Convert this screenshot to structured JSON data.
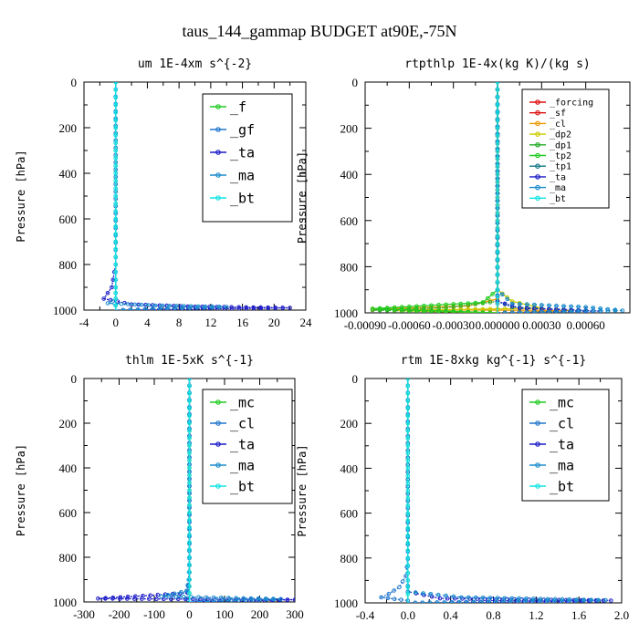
{
  "figure_title": "taus_144_gammap  BUDGET at90E,-75N",
  "chart_data": [
    {
      "type": "line",
      "title": "um  1E-4xm s^{-2}",
      "ylabel": "Pressure [hPa]",
      "xlim": [
        -4,
        24
      ],
      "ylim": [
        1000,
        0
      ],
      "xticks": [
        "-4",
        "0",
        "4",
        "8",
        "12",
        "16",
        "20",
        "24"
      ],
      "yticks": [
        "0",
        "200",
        "400",
        "600",
        "800",
        "1000"
      ],
      "legend_position": "top-right",
      "series": [
        {
          "name": "_f",
          "color": "#22cc22",
          "marker": "o",
          "points": [
            [
              0,
              0
            ],
            [
              0,
              200
            ],
            [
              0,
              400
            ],
            [
              0,
              600
            ],
            [
              0,
              800
            ],
            [
              0,
              900
            ],
            [
              0,
              950
            ],
            [
              0,
              980
            ],
            [
              0,
              1000
            ]
          ]
        },
        {
          "name": "_gf",
          "color": "#2277cc",
          "marker": "x",
          "points": [
            [
              0,
              0
            ],
            [
              0,
              200
            ],
            [
              0,
              400
            ],
            [
              0,
              600
            ],
            [
              0,
              800
            ],
            [
              0,
              900
            ],
            [
              0,
              950
            ],
            [
              0,
              980
            ],
            [
              0,
              1000
            ]
          ]
        },
        {
          "name": "_ta",
          "color": "#1c1cc8",
          "marker": "+",
          "points": [
            [
              0,
              0
            ],
            [
              0,
              800
            ],
            [
              -0.5,
              900
            ],
            [
              -1.5,
              950
            ],
            [
              2,
              975
            ],
            [
              10,
              985
            ],
            [
              22,
              990
            ],
            [
              0,
              1000
            ]
          ]
        },
        {
          "name": "_ma",
          "color": "#1c8ccc",
          "marker": "-",
          "points": [
            [
              0,
              0
            ],
            [
              0,
              800
            ],
            [
              0,
              900
            ],
            [
              0,
              950
            ],
            [
              -1,
              970
            ],
            [
              5,
              980
            ],
            [
              14,
              986
            ],
            [
              0,
              1000
            ]
          ]
        },
        {
          "name": "_bt",
          "color": "#14e4e4",
          "marker": "s",
          "points": [
            [
              0,
              0
            ],
            [
              0,
              200
            ],
            [
              0,
              400
            ],
            [
              0,
              600
            ],
            [
              0,
              800
            ],
            [
              0,
              900
            ],
            [
              0,
              950
            ],
            [
              0,
              980
            ],
            [
              0,
              1000
            ]
          ]
        }
      ]
    },
    {
      "type": "line",
      "title": "rtpthlp  1E-4x(kg K)/(kg s)",
      "ylabel": "Pressure [hPa]",
      "xlim": [
        -0.0009,
        0.0009
      ],
      "ylim": [
        1000,
        0
      ],
      "xticks": [
        "-0.00090",
        "-0.00060",
        "-0.00030",
        "0.000000",
        "0.00030",
        "0.00060"
      ],
      "yticks": [
        "0",
        "200",
        "400",
        "600",
        "800",
        "1000"
      ],
      "legend_position": "top-right",
      "series": [
        {
          "name": "_forcing",
          "color": "#dd1111",
          "marker": "o",
          "points": [
            [
              0,
              0
            ],
            [
              0,
              200
            ],
            [
              0,
              400
            ],
            [
              0,
              600
            ],
            [
              0,
              800
            ],
            [
              0,
              900
            ],
            [
              0,
              960
            ],
            [
              0,
              1000
            ]
          ]
        },
        {
          "name": "_sf",
          "color": "#dd1111",
          "marker": "*",
          "points": [
            [
              0,
              0
            ],
            [
              0,
              200
            ],
            [
              0,
              400
            ],
            [
              0,
              600
            ],
            [
              0,
              800
            ],
            [
              0,
              900
            ],
            [
              0,
              960
            ],
            [
              0,
              1000
            ]
          ]
        },
        {
          "name": "_cl",
          "color": "#ee9900",
          "marker": "^",
          "points": [
            [
              0,
              0
            ],
            [
              0,
              900
            ],
            [
              0,
              940
            ],
            [
              -0.0002,
              970
            ],
            [
              -0.00085,
              985
            ],
            [
              0.0005,
              990
            ],
            [
              0,
              1000
            ]
          ]
        },
        {
          "name": "_dp2",
          "color": "#cccc00",
          "marker": "o",
          "points": [
            [
              0,
              0
            ],
            [
              0,
              900
            ],
            [
              0.0001,
              950
            ],
            [
              0.0003,
              980
            ],
            [
              -0.0007,
              990
            ],
            [
              0,
              1000
            ]
          ]
        },
        {
          "name": "_dp1",
          "color": "#22aa22",
          "marker": "x",
          "points": [
            [
              0,
              0
            ],
            [
              0,
              900
            ],
            [
              0,
              950
            ],
            [
              -0.00035,
              978
            ],
            [
              -0.00085,
              988
            ],
            [
              0,
              1000
            ]
          ]
        },
        {
          "name": "_tp2",
          "color": "#22cc22",
          "marker": "o",
          "points": [
            [
              0,
              0
            ],
            [
              0,
              900
            ],
            [
              -0.0001,
              955
            ],
            [
              -0.00085,
              982
            ],
            [
              0,
              1000
            ]
          ]
        },
        {
          "name": "_tp1",
          "color": "#117788",
          "marker": "x",
          "points": [
            [
              0,
              0
            ],
            [
              0,
              900
            ],
            [
              0,
              950
            ],
            [
              0.0001,
              975
            ],
            [
              0.0006,
              990
            ],
            [
              0,
              1000
            ]
          ]
        },
        {
          "name": "_ta",
          "color": "#1c1cc8",
          "marker": "+",
          "points": [
            [
              0,
              0
            ],
            [
              0,
              900
            ],
            [
              0,
              950
            ],
            [
              0.00015,
              980
            ],
            [
              0.0007,
              992
            ],
            [
              0,
              1000
            ]
          ]
        },
        {
          "name": "_ma",
          "color": "#1c8ccc",
          "marker": "-",
          "points": [
            [
              0,
              0
            ],
            [
              0,
              900
            ],
            [
              0.0001,
              960
            ],
            [
              0.0006,
              975
            ],
            [
              0.00085,
              990
            ],
            [
              0,
              1000
            ]
          ]
        },
        {
          "name": "_bt",
          "color": "#14e4e4",
          "marker": "s",
          "points": [
            [
              0,
              0
            ],
            [
              0,
              200
            ],
            [
              0,
              400
            ],
            [
              0,
              600
            ],
            [
              0,
              800
            ],
            [
              0,
              900
            ],
            [
              0,
              960
            ],
            [
              0,
              1000
            ]
          ]
        }
      ]
    },
    {
      "type": "line",
      "title": "thlm  1E-5xK s^{-1}",
      "ylabel": "Pressure [hPa]",
      "xlim": [
        -300,
        300
      ],
      "ylim": [
        1000,
        0
      ],
      "xticks": [
        "-300",
        "-200",
        "-100",
        "0",
        "100",
        "200",
        "300"
      ],
      "yticks": [
        "0",
        "200",
        "400",
        "600",
        "800",
        "1000"
      ],
      "legend_position": "top-right",
      "series": [
        {
          "name": "_mc",
          "color": "#22cc22",
          "marker": "o",
          "points": [
            [
              0,
              0
            ],
            [
              0,
              200
            ],
            [
              0,
              400
            ],
            [
              0,
              600
            ],
            [
              0,
              800
            ],
            [
              0,
              900
            ],
            [
              0,
              960
            ],
            [
              0,
              1000
            ]
          ]
        },
        {
          "name": "_cl",
          "color": "#2277cc",
          "marker": "x",
          "points": [
            [
              0,
              0
            ],
            [
              0,
              800
            ],
            [
              -2,
              900
            ],
            [
              -8,
              950
            ],
            [
              -30,
              975
            ],
            [
              -5,
              990
            ],
            [
              0,
              1000
            ]
          ]
        },
        {
          "name": "_ta",
          "color": "#1c1cc8",
          "marker": "+",
          "points": [
            [
              0,
              0
            ],
            [
              0,
              900
            ],
            [
              -5,
              960
            ],
            [
              -260,
              985
            ],
            [
              300,
              990
            ],
            [
              0,
              1000
            ]
          ]
        },
        {
          "name": "_ma",
          "color": "#1c8ccc",
          "marker": "-",
          "points": [
            [
              0,
              0
            ],
            [
              0,
              900
            ],
            [
              -5,
              950
            ],
            [
              -80,
              975
            ],
            [
              260,
              987
            ],
            [
              0,
              1000
            ]
          ]
        },
        {
          "name": "_bt",
          "color": "#14e4e4",
          "marker": "s",
          "points": [
            [
              0,
              0
            ],
            [
              0,
              200
            ],
            [
              0,
              400
            ],
            [
              0,
              600
            ],
            [
              0,
              800
            ],
            [
              0,
              900
            ],
            [
              0,
              960
            ],
            [
              0,
              1000
            ]
          ]
        }
      ]
    },
    {
      "type": "line",
      "title": "rtm  1E-8xkg kg^{-1} s^{-1}",
      "ylabel": "Pressure [hPa]",
      "xlim": [
        -0.4,
        2.0
      ],
      "ylim": [
        1000,
        0
      ],
      "xticks": [
        "-0.4",
        "0.0",
        "0.4",
        "0.8",
        "1.2",
        "1.6",
        "2.0"
      ],
      "yticks": [
        "0",
        "200",
        "400",
        "600",
        "800",
        "1000"
      ],
      "legend_position": "top-right",
      "series": [
        {
          "name": "_mc",
          "color": "#22cc22",
          "marker": "o",
          "points": [
            [
              0,
              0
            ],
            [
              0,
              200
            ],
            [
              0,
              400
            ],
            [
              0,
              600
            ],
            [
              0,
              800
            ],
            [
              0,
              900
            ],
            [
              0,
              960
            ],
            [
              0,
              1000
            ]
          ]
        },
        {
          "name": "_cl",
          "color": "#2277cc",
          "marker": "x",
          "points": [
            [
              0,
              0
            ],
            [
              0,
              800
            ],
            [
              -0.02,
              880
            ],
            [
              -0.08,
              930
            ],
            [
              -0.18,
              960
            ],
            [
              -0.25,
              975
            ],
            [
              0,
              990
            ],
            [
              0,
              1000
            ]
          ]
        },
        {
          "name": "_ta",
          "color": "#1c1cc8",
          "marker": "+",
          "points": [
            [
              0,
              0
            ],
            [
              0,
              900
            ],
            [
              0,
              950
            ],
            [
              0.3,
              980
            ],
            [
              1.9,
              990
            ],
            [
              0,
              1000
            ]
          ]
        },
        {
          "name": "_ma",
          "color": "#1c8ccc",
          "marker": "-",
          "points": [
            [
              0,
              0
            ],
            [
              0,
              900
            ],
            [
              0,
              950
            ],
            [
              0.5,
              975
            ],
            [
              1.85,
              988
            ],
            [
              0,
              1000
            ]
          ]
        },
        {
          "name": "_bt",
          "color": "#14e4e4",
          "marker": "s",
          "points": [
            [
              0,
              0
            ],
            [
              0,
              200
            ],
            [
              0,
              400
            ],
            [
              0,
              600
            ],
            [
              0,
              800
            ],
            [
              0,
              900
            ],
            [
              0,
              960
            ],
            [
              0,
              1000
            ]
          ]
        }
      ]
    }
  ]
}
